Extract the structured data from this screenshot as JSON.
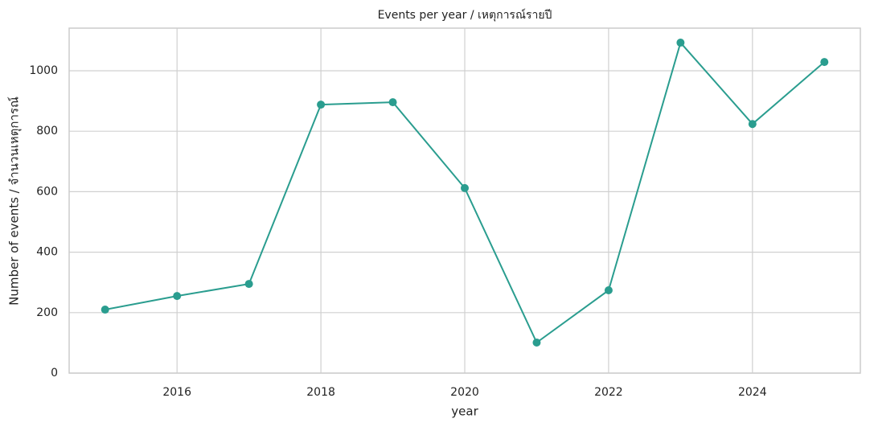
{
  "chart_data": {
    "type": "line",
    "title": "Events per year / เหตุการณ์รายปี",
    "x_label": "year",
    "y_label": "Number of events / จำนวนเหตุการณ์",
    "x": [
      2015,
      2016,
      2017,
      2018,
      2019,
      2020,
      2021,
      2022,
      2023,
      2024,
      2025
    ],
    "series": [
      {
        "name": "events",
        "color": "#2a9d8f",
        "values": [
          210,
          255,
          295,
          888,
          896,
          612,
          101,
          274,
          1093,
          824,
          1029
        ]
      }
    ],
    "xlim": [
      2014.5,
      2025.5
    ],
    "xticks": [
      2016,
      2018,
      2020,
      2022,
      2024
    ],
    "ylim": [
      0,
      1141
    ],
    "yticks": [
      0,
      200,
      400,
      600,
      800,
      1000
    ],
    "grid": true
  }
}
